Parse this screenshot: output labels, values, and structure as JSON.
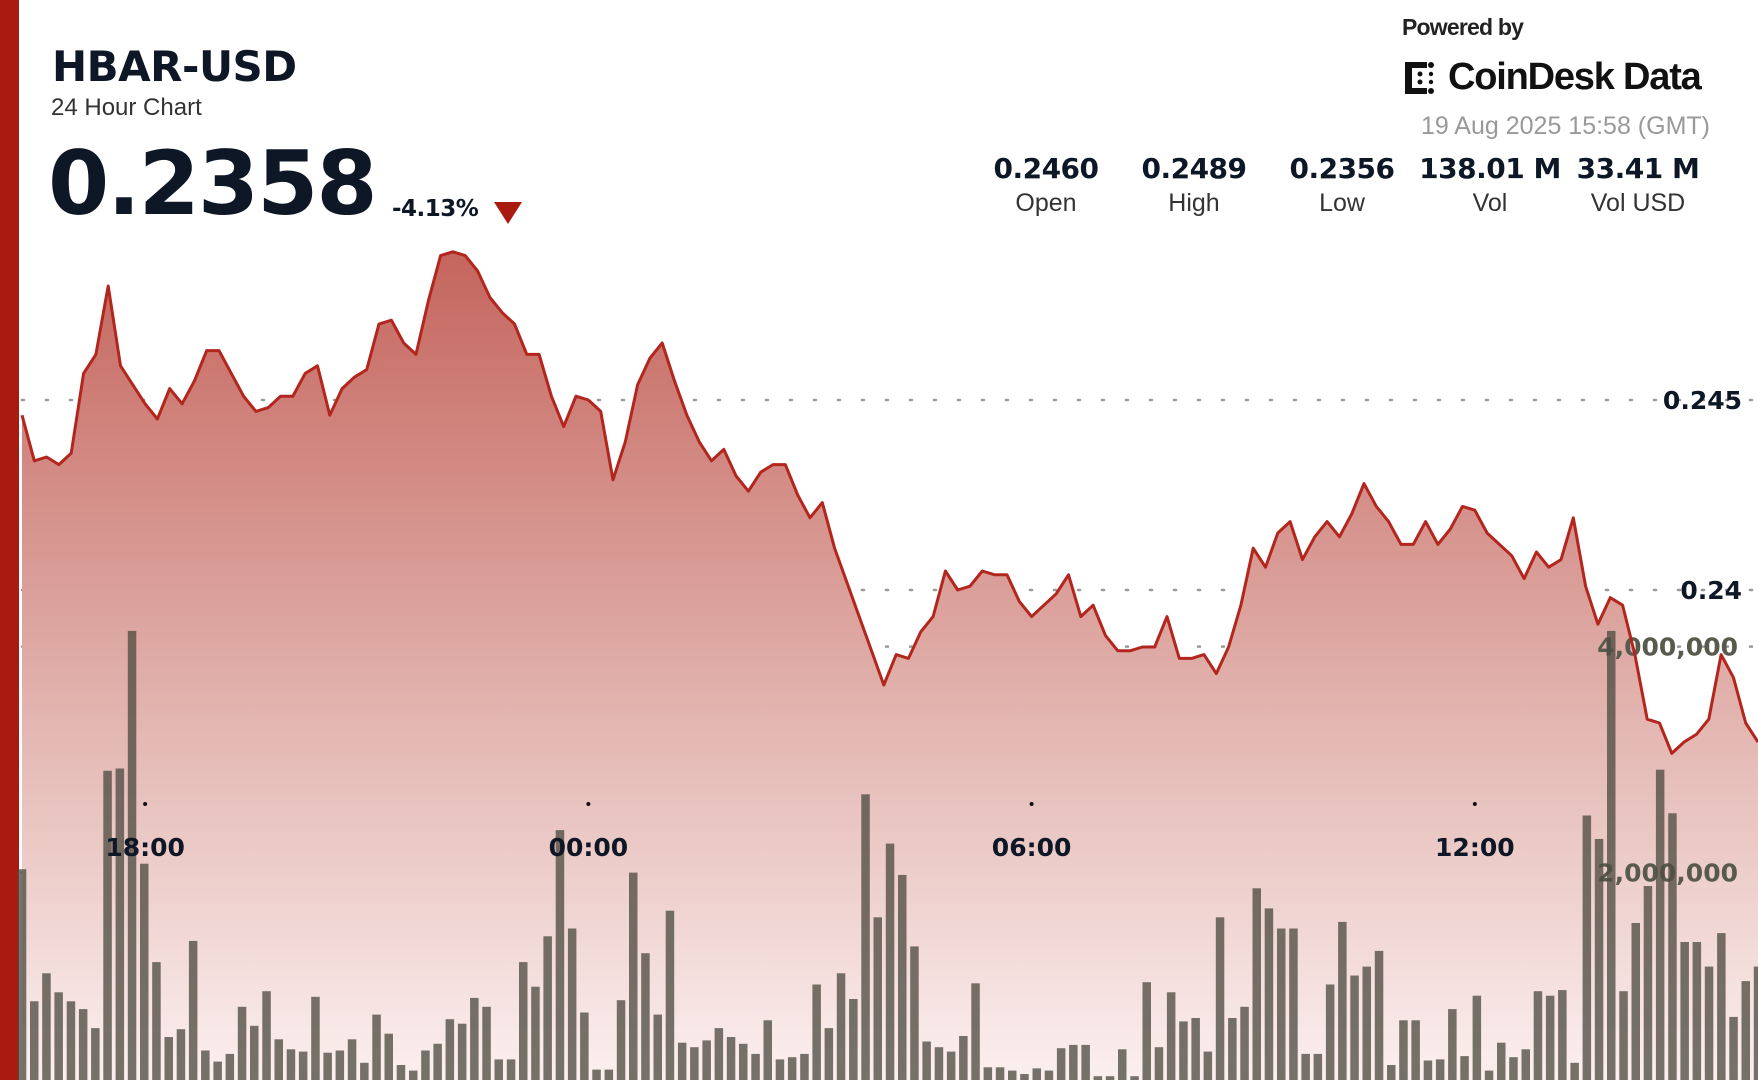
{
  "header": {
    "symbol": "HBAR-USD",
    "subtitle": "24 Hour Chart",
    "price": "0.2358",
    "change": "-4.13%",
    "change_direction": "down",
    "powered_by": "Powered by",
    "brand": "CoinDesk Data",
    "timestamp": "19 Aug 2025 15:58 (GMT)"
  },
  "stats": [
    {
      "value": "0.2460",
      "label": "Open"
    },
    {
      "value": "0.2489",
      "label": "High"
    },
    {
      "value": "0.2356",
      "label": "Low"
    },
    {
      "value": "138.01 M",
      "label": "Vol"
    },
    {
      "value": "33.41 M",
      "label": "Vol USD"
    }
  ],
  "colors": {
    "accent": "#a91b10",
    "line": "#b3261e",
    "volume_bar": "#5c5a50",
    "text": "#0d1726"
  },
  "chart_data": {
    "type": "area",
    "x_start": "16:20",
    "interval_minutes": 10,
    "x_ticks": [
      "18:00",
      "00:00",
      "06:00",
      "12:00"
    ],
    "price_axis": {
      "ticks": [
        "0.245",
        "0.24"
      ],
      "tick_values": [
        0.245,
        0.24
      ],
      "position": "right"
    },
    "volume_axis": {
      "ticks": [
        "4,000,000",
        "2,000,000"
      ],
      "tick_values": [
        4000000,
        2000000
      ],
      "position": "right"
    },
    "grid": "dotted horizontal",
    "price": [
      0.2446,
      0.2434,
      0.2435,
      0.2433,
      0.2436,
      0.2457,
      0.2462,
      0.248,
      0.2459,
      0.2454,
      0.2449,
      0.2445,
      0.2453,
      0.2449,
      0.2455,
      0.2463,
      0.2463,
      0.2457,
      0.2451,
      0.2447,
      0.2448,
      0.2451,
      0.2451,
      0.2457,
      0.2459,
      0.2446,
      0.2453,
      0.2456,
      0.2458,
      0.247,
      0.2471,
      0.2465,
      0.2462,
      0.2476,
      0.2488,
      0.2489,
      0.2488,
      0.2484,
      0.2477,
      0.2473,
      0.247,
      0.2462,
      0.2462,
      0.2451,
      0.2443,
      0.2451,
      0.245,
      0.2447,
      0.2429,
      0.2439,
      0.2454,
      0.2461,
      0.2465,
      0.2455,
      0.2446,
      0.2439,
      0.2434,
      0.2437,
      0.243,
      0.2426,
      0.2431,
      0.2433,
      0.2433,
      0.2425,
      0.2419,
      0.2423,
      0.2411,
      0.2402,
      0.2393,
      0.2384,
      0.2375,
      0.2383,
      0.2382,
      0.2389,
      0.2393,
      0.2405,
      0.24,
      0.2401,
      0.2405,
      0.2404,
      0.2404,
      0.2397,
      0.2393,
      0.2396,
      0.2399,
      0.2404,
      0.2393,
      0.2396,
      0.2388,
      0.2384,
      0.2384,
      0.2385,
      0.2385,
      0.2393,
      0.2382,
      0.2382,
      0.2383,
      0.2378,
      0.2385,
      0.2396,
      0.2411,
      0.2406,
      0.2415,
      0.2418,
      0.2408,
      0.2414,
      0.2418,
      0.2414,
      0.242,
      0.2428,
      0.2422,
      0.2418,
      0.2412,
      0.2412,
      0.2418,
      0.2412,
      0.2416,
      0.2422,
      0.2421,
      0.2415,
      0.2412,
      0.2409,
      0.2403,
      0.241,
      0.2406,
      0.2408,
      0.2419,
      0.2401,
      0.2391,
      0.2398,
      0.2396,
      0.2383,
      0.2366,
      0.2365,
      0.2357,
      0.236,
      0.2362,
      0.2366,
      0.2383,
      0.2377,
      0.2365,
      0.236
    ],
    "volume": [
      2030000,
      861000,
      1109000,
      941000,
      861000,
      792000,
      624000,
      2901000,
      2921000,
      4139000,
      2079000,
      1208000,
      545000,
      614000,
      1396000,
      426000,
      327000,
      396000,
      812000,
      644000,
      950000,
      525000,
      436000,
      416000,
      901000,
      406000,
      426000,
      525000,
      317000,
      743000,
      574000,
      297000,
      248000,
      426000,
      485000,
      703000,
      663000,
      891000,
      812000,
      347000,
      347000,
      1208000,
      990000,
      1436000,
      2376000,
      1505000,
      762000,
      257000,
      257000,
      871000,
      2000000,
      1287000,
      743000,
      1663000,
      495000,
      455000,
      515000,
      624000,
      545000,
      485000,
      396000,
      693000,
      347000,
      366000,
      396000,
      1010000,
      624000,
      1109000,
      881000,
      2693000,
      1604000,
      2257000,
      1980000,
      1347000,
      505000,
      455000,
      416000,
      554000,
      1020000,
      277000,
      277000,
      248000,
      218000,
      267000,
      248000,
      446000,
      475000,
      475000,
      198000,
      198000,
      436000,
      198000,
      1030000,
      455000,
      941000,
      683000,
      713000,
      416000,
      1604000,
      713000,
      812000,
      1861000,
      1683000,
      1505000,
      1505000,
      396000,
      396000,
      1010000,
      1564000,
      1089000,
      1168000,
      1307000,
      297000,
      693000,
      693000,
      337000,
      347000,
      792000,
      376000,
      911000,
      248000,
      495000,
      366000,
      436000,
      950000,
      911000,
      960000,
      317000,
      2505000,
      2297000,
      4139000,
      950000,
      1554000,
      1881000,
      2911000,
      2525000,
      1386000,
      1386000,
      1168000,
      1465000,
      723000,
      1040000,
      1168000
    ]
  }
}
